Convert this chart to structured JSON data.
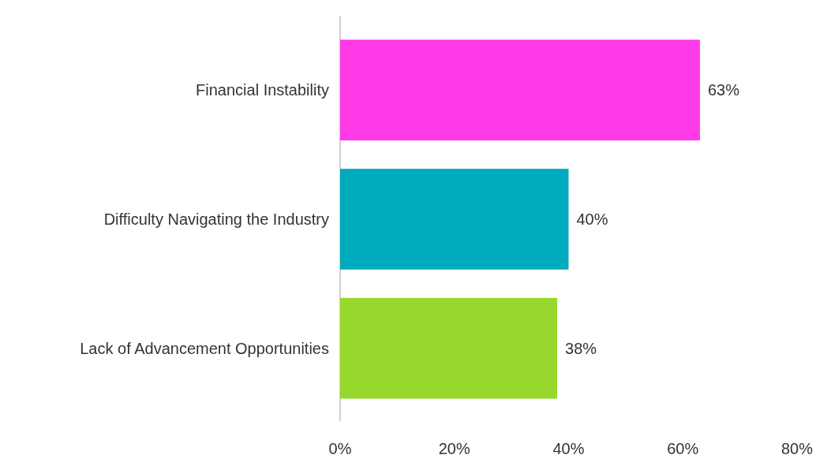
{
  "chart_data": {
    "type": "bar",
    "orientation": "horizontal",
    "categories": [
      "Financial Instability",
      "Difficulty Navigating the Industry",
      "Lack of Advancement Opportunities"
    ],
    "values": [
      63,
      40,
      38
    ],
    "colors": [
      "#ff3ae6",
      "#00aabd",
      "#97d82c"
    ],
    "value_labels": [
      "63%",
      "40%",
      "38%"
    ],
    "xlim": [
      0,
      80
    ],
    "xticks": [
      {
        "value": 0,
        "label": "0%"
      },
      {
        "value": 20,
        "label": "20%"
      },
      {
        "value": 40,
        "label": "40%"
      },
      {
        "value": 60,
        "label": "60%"
      },
      {
        "value": 80,
        "label": "80%"
      }
    ],
    "grid": false
  }
}
